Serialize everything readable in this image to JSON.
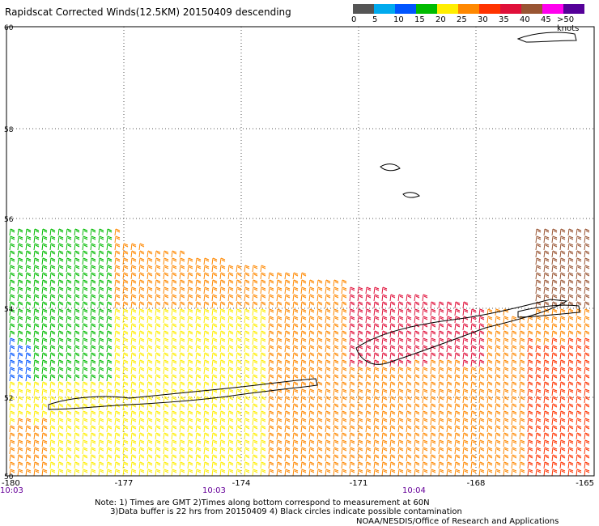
{
  "title": "Rapidscat Corrected Winds(12.5KM) 20150409 descending",
  "legend": {
    "colors": [
      "#555555",
      "#00aaee",
      "#0055ff",
      "#00bb00",
      "#ffee00",
      "#ff8800",
      "#ff3300",
      "#e0103a",
      "#995533",
      "#ff00ee",
      "#550099"
    ],
    "labels": [
      "0",
      "5",
      "10",
      "15",
      "20",
      "25",
      "30",
      "35",
      "40",
      "45",
      ">50 knots"
    ]
  },
  "axes": {
    "lat_labels": [
      "60",
      "58",
      "56",
      "54",
      "52",
      "50"
    ],
    "lon_labels": [
      "-180",
      "-177",
      "-174",
      "-171",
      "-168",
      "-165"
    ],
    "time_labels": [
      "10:03",
      "10:03",
      "10:04"
    ]
  },
  "notes": "Note: 1) Times are GMT 2)Times along bottom correspond to measurement at 60N\n      3)Data buffer is 22 hrs from 20150409 4) Black circles indicate possible contamination",
  "credit": "NOAA/NESDIS/Office of Research and Applications",
  "map": {
    "region": "Bering Sea / Aleutian Islands",
    "wind_barb_field": true
  }
}
